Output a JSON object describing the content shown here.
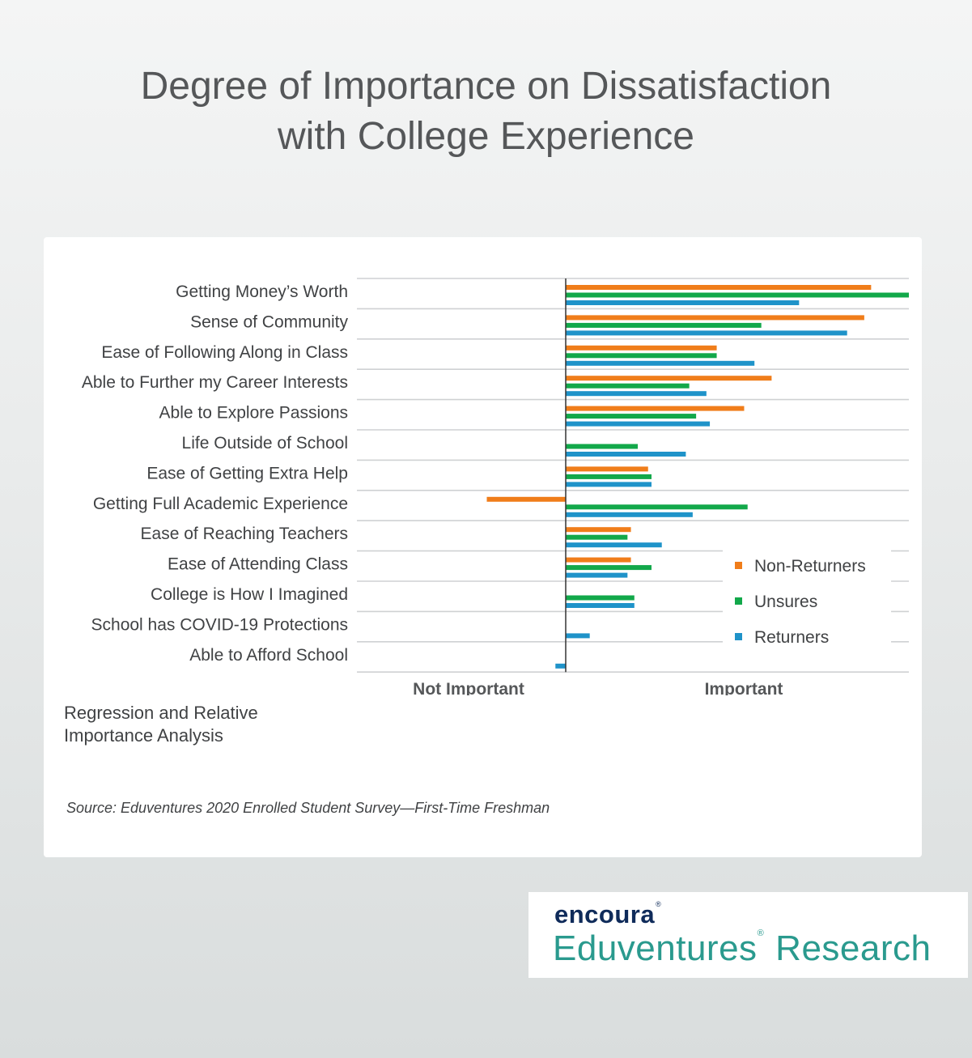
{
  "title": [
    "Degree of Importance on Dissatisfaction",
    "with College Experience"
  ],
  "chart_data": {
    "type": "bar",
    "orientation": "horizontal",
    "categories": [
      "Getting Money’s Worth",
      "Sense of Community",
      "Ease of Following Along in Class",
      "Able to Further my Career Interests",
      "Able to Explore Passions",
      "Life Outside of School",
      "Ease of Getting Extra Help",
      "Getting Full Academic Experience",
      "Ease of Reaching Teachers",
      "Ease of Attending Class",
      "College is How I Imagined",
      "School has COVID-19 Protections",
      "Able to Afford School"
    ],
    "series": [
      {
        "name": "Non-Returners",
        "color": "#f07d1a",
        "values": [
          0.89,
          0.87,
          0.44,
          0.6,
          0.52,
          null,
          0.24,
          -0.23,
          0.19,
          0.19,
          null,
          null,
          null
        ]
      },
      {
        "name": "Unsures",
        "color": "#12a84a",
        "values": [
          1.0,
          0.57,
          0.44,
          0.36,
          0.38,
          0.21,
          0.25,
          0.53,
          0.18,
          0.25,
          0.2,
          null,
          null
        ]
      },
      {
        "name": "Returners",
        "color": "#1f93c9",
        "values": [
          0.68,
          0.82,
          0.55,
          0.41,
          0.42,
          0.35,
          0.25,
          0.37,
          0.28,
          0.18,
          0.2,
          0.07,
          -0.03
        ]
      }
    ],
    "xlabels": {
      "negative": "Not Important",
      "positive": "Important"
    },
    "xlim": [
      -0.61,
      1.0
    ],
    "legend_position": "bottom-right",
    "grid": "horizontal"
  },
  "note": [
    "Regression and Relative",
    "Importance Analysis"
  ],
  "source": "Source: Eduventures 2020 Enrolled Student Survey—First-Time Freshman",
  "brand": {
    "top": "encoura",
    "bottom_first": "Eduventures",
    "bottom_second": "Research",
    "reg": "®"
  }
}
